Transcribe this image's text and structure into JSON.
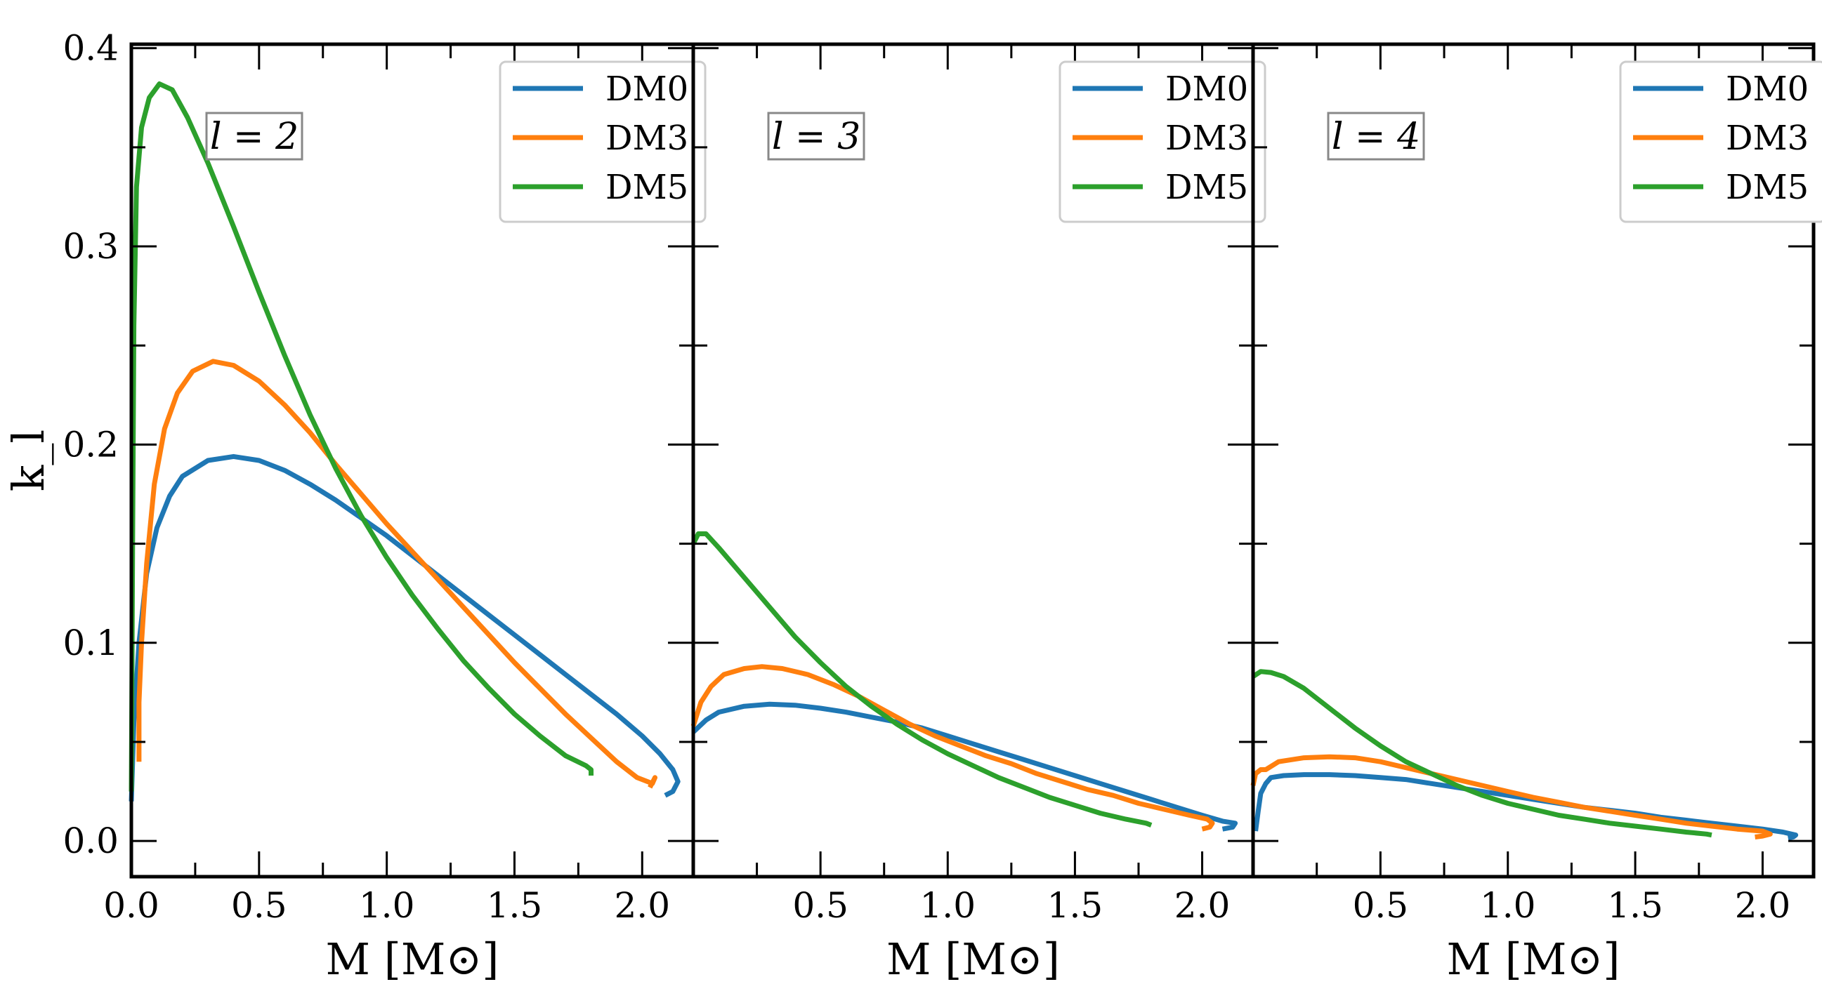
{
  "chart_data": [
    {
      "type": "line",
      "annotation": "l = 2",
      "xlabel": "M [M⊙]",
      "ylabel": "k_l",
      "xlim": [
        0.0,
        2.2
      ],
      "ylim": [
        -0.018,
        0.402
      ],
      "xticks": [
        "0.0",
        "0.5",
        "1.0",
        "1.5",
        "2.0"
      ],
      "yticks": [
        "0.0",
        "0.1",
        "0.2",
        "0.3",
        "0.4"
      ],
      "legend_position": "top-right",
      "series": [
        {
          "name": "DM0",
          "color": "#1f77b4",
          "points": [
            [
              0.0,
              0.02
            ],
            [
              0.01,
              0.06
            ],
            [
              0.03,
              0.1
            ],
            [
              0.06,
              0.135
            ],
            [
              0.1,
              0.158
            ],
            [
              0.15,
              0.174
            ],
            [
              0.2,
              0.184
            ],
            [
              0.3,
              0.192
            ],
            [
              0.4,
              0.194
            ],
            [
              0.5,
              0.192
            ],
            [
              0.6,
              0.187
            ],
            [
              0.7,
              0.18
            ],
            [
              0.8,
              0.172
            ],
            [
              0.9,
              0.163
            ],
            [
              1.0,
              0.154
            ],
            [
              1.1,
              0.144
            ],
            [
              1.2,
              0.134
            ],
            [
              1.3,
              0.124
            ],
            [
              1.4,
              0.114
            ],
            [
              1.5,
              0.104
            ],
            [
              1.6,
              0.094
            ],
            [
              1.7,
              0.084
            ],
            [
              1.8,
              0.074
            ],
            [
              1.9,
              0.064
            ],
            [
              2.0,
              0.053
            ],
            [
              2.07,
              0.044
            ],
            [
              2.12,
              0.036
            ],
            [
              2.14,
              0.03
            ],
            [
              2.12,
              0.025
            ],
            [
              2.09,
              0.023
            ]
          ]
        },
        {
          "name": "DM3",
          "color": "#ff7f0e",
          "points": [
            [
              0.03,
              0.04
            ],
            [
              0.03,
              0.07
            ],
            [
              0.04,
              0.1
            ],
            [
              0.06,
              0.14
            ],
            [
              0.09,
              0.18
            ],
            [
              0.13,
              0.208
            ],
            [
              0.18,
              0.226
            ],
            [
              0.24,
              0.237
            ],
            [
              0.32,
              0.242
            ],
            [
              0.4,
              0.24
            ],
            [
              0.5,
              0.232
            ],
            [
              0.6,
              0.22
            ],
            [
              0.7,
              0.206
            ],
            [
              0.8,
              0.19
            ],
            [
              0.9,
              0.175
            ],
            [
              1.0,
              0.16
            ],
            [
              1.1,
              0.146
            ],
            [
              1.2,
              0.132
            ],
            [
              1.3,
              0.118
            ],
            [
              1.4,
              0.104
            ],
            [
              1.5,
              0.09
            ],
            [
              1.6,
              0.077
            ],
            [
              1.7,
              0.064
            ],
            [
              1.8,
              0.052
            ],
            [
              1.9,
              0.04
            ],
            [
              1.98,
              0.032
            ],
            [
              2.04,
              0.029
            ],
            [
              2.05,
              0.032
            ],
            [
              2.03,
              0.027
            ]
          ]
        },
        {
          "name": "DM5",
          "color": "#2ca02c",
          "points": [
            [
              0.0,
              0.025
            ],
            [
              0.005,
              0.15
            ],
            [
              0.01,
              0.26
            ],
            [
              0.02,
              0.33
            ],
            [
              0.04,
              0.36
            ],
            [
              0.07,
              0.375
            ],
            [
              0.11,
              0.382
            ],
            [
              0.16,
              0.379
            ],
            [
              0.22,
              0.365
            ],
            [
              0.3,
              0.342
            ],
            [
              0.4,
              0.31
            ],
            [
              0.5,
              0.277
            ],
            [
              0.6,
              0.245
            ],
            [
              0.7,
              0.215
            ],
            [
              0.8,
              0.188
            ],
            [
              0.9,
              0.164
            ],
            [
              1.0,
              0.143
            ],
            [
              1.1,
              0.124
            ],
            [
              1.2,
              0.107
            ],
            [
              1.3,
              0.091
            ],
            [
              1.4,
              0.077
            ],
            [
              1.5,
              0.064
            ],
            [
              1.6,
              0.053
            ],
            [
              1.7,
              0.043
            ],
            [
              1.78,
              0.038
            ],
            [
              1.8,
              0.036
            ],
            [
              1.8,
              0.033
            ]
          ]
        }
      ]
    },
    {
      "type": "line",
      "annotation": "l = 3",
      "xlabel": "M [M⊙]",
      "ylabel": "",
      "xlim": [
        0.0,
        2.2
      ],
      "ylim": [
        -0.018,
        0.402
      ],
      "xticks": [
        "0.5",
        "1.0",
        "1.5",
        "2.0"
      ],
      "yticks": [],
      "legend_position": "top-right",
      "series": [
        {
          "name": "DM0",
          "color": "#1f77b4",
          "points": [
            [
              0.0,
              0.055
            ],
            [
              0.05,
              0.061
            ],
            [
              0.1,
              0.065
            ],
            [
              0.2,
              0.068
            ],
            [
              0.3,
              0.069
            ],
            [
              0.4,
              0.0685
            ],
            [
              0.5,
              0.067
            ],
            [
              0.6,
              0.065
            ],
            [
              0.7,
              0.0625
            ],
            [
              0.8,
              0.06
            ],
            [
              0.9,
              0.057
            ],
            [
              1.0,
              0.053
            ],
            [
              1.1,
              0.049
            ],
            [
              1.2,
              0.045
            ],
            [
              1.3,
              0.041
            ],
            [
              1.4,
              0.037
            ],
            [
              1.5,
              0.033
            ],
            [
              1.6,
              0.029
            ],
            [
              1.7,
              0.025
            ],
            [
              1.8,
              0.021
            ],
            [
              1.9,
              0.017
            ],
            [
              2.0,
              0.013
            ],
            [
              2.08,
              0.01
            ],
            [
              2.13,
              0.009
            ],
            [
              2.12,
              0.007
            ],
            [
              2.08,
              0.006
            ]
          ]
        },
        {
          "name": "DM3",
          "color": "#ff7f0e",
          "points": [
            [
              0.0,
              0.058
            ],
            [
              0.03,
              0.07
            ],
            [
              0.07,
              0.078
            ],
            [
              0.12,
              0.084
            ],
            [
              0.2,
              0.087
            ],
            [
              0.27,
              0.088
            ],
            [
              0.35,
              0.087
            ],
            [
              0.45,
              0.084
            ],
            [
              0.55,
              0.079
            ],
            [
              0.65,
              0.073
            ],
            [
              0.75,
              0.066
            ],
            [
              0.85,
              0.059
            ],
            [
              0.95,
              0.053
            ],
            [
              1.05,
              0.048
            ],
            [
              1.15,
              0.043
            ],
            [
              1.25,
              0.039
            ],
            [
              1.35,
              0.034
            ],
            [
              1.45,
              0.03
            ],
            [
              1.55,
              0.026
            ],
            [
              1.65,
              0.023
            ],
            [
              1.75,
              0.019
            ],
            [
              1.85,
              0.016
            ],
            [
              1.95,
              0.013
            ],
            [
              2.02,
              0.011
            ],
            [
              2.04,
              0.009
            ],
            [
              2.03,
              0.007
            ],
            [
              2.0,
              0.006
            ]
          ]
        },
        {
          "name": "DM5",
          "color": "#2ca02c",
          "points": [
            [
              0.0,
              0.15
            ],
            [
              0.02,
              0.155
            ],
            [
              0.05,
              0.155
            ],
            [
              0.1,
              0.148
            ],
            [
              0.2,
              0.133
            ],
            [
              0.3,
              0.118
            ],
            [
              0.4,
              0.103
            ],
            [
              0.5,
              0.09
            ],
            [
              0.6,
              0.078
            ],
            [
              0.7,
              0.068
            ],
            [
              0.8,
              0.059
            ],
            [
              0.9,
              0.051
            ],
            [
              1.0,
              0.044
            ],
            [
              1.1,
              0.038
            ],
            [
              1.2,
              0.032
            ],
            [
              1.3,
              0.027
            ],
            [
              1.4,
              0.022
            ],
            [
              1.5,
              0.018
            ],
            [
              1.6,
              0.014
            ],
            [
              1.7,
              0.011
            ],
            [
              1.78,
              0.009
            ],
            [
              1.8,
              0.008
            ]
          ]
        }
      ]
    },
    {
      "type": "line",
      "annotation": "l = 4",
      "xlabel": "M [M⊙]",
      "ylabel": "",
      "xlim": [
        0.0,
        2.2
      ],
      "ylim": [
        -0.018,
        0.402
      ],
      "xticks": [
        "0.5",
        "1.0",
        "1.5",
        "2.0"
      ],
      "yticks": [],
      "legend_position": "top-right",
      "series": [
        {
          "name": "DM0",
          "color": "#1f77b4",
          "points": [
            [
              0.01,
              0.005
            ],
            [
              0.02,
              0.015
            ],
            [
              0.03,
              0.024
            ],
            [
              0.05,
              0.029
            ],
            [
              0.07,
              0.032
            ],
            [
              0.12,
              0.033
            ],
            [
              0.2,
              0.0335
            ],
            [
              0.3,
              0.0335
            ],
            [
              0.4,
              0.033
            ],
            [
              0.5,
              0.032
            ],
            [
              0.6,
              0.031
            ],
            [
              0.7,
              0.029
            ],
            [
              0.8,
              0.027
            ],
            [
              0.9,
              0.025
            ],
            [
              1.0,
              0.023
            ],
            [
              1.1,
              0.021
            ],
            [
              1.2,
              0.019
            ],
            [
              1.3,
              0.017
            ],
            [
              1.4,
              0.0155
            ],
            [
              1.5,
              0.014
            ],
            [
              1.6,
              0.012
            ],
            [
              1.7,
              0.0105
            ],
            [
              1.8,
              0.009
            ],
            [
              1.9,
              0.0075
            ],
            [
              2.0,
              0.006
            ],
            [
              2.08,
              0.0045
            ],
            [
              2.13,
              0.003
            ],
            [
              2.12,
              0.002
            ],
            [
              2.1,
              0.0015
            ]
          ]
        },
        {
          "name": "DM3",
          "color": "#ff7f0e",
          "points": [
            [
              0.0,
              0.028
            ],
            [
              0.01,
              0.034
            ],
            [
              0.03,
              0.036
            ],
            [
              0.05,
              0.036
            ],
            [
              0.1,
              0.04
            ],
            [
              0.2,
              0.042
            ],
            [
              0.3,
              0.0425
            ],
            [
              0.4,
              0.042
            ],
            [
              0.5,
              0.04
            ],
            [
              0.6,
              0.037
            ],
            [
              0.7,
              0.034
            ],
            [
              0.8,
              0.031
            ],
            [
              0.9,
              0.028
            ],
            [
              1.0,
              0.025
            ],
            [
              1.1,
              0.022
            ],
            [
              1.2,
              0.0195
            ],
            [
              1.3,
              0.017
            ],
            [
              1.4,
              0.015
            ],
            [
              1.5,
              0.013
            ],
            [
              1.6,
              0.011
            ],
            [
              1.7,
              0.009
            ],
            [
              1.8,
              0.0075
            ],
            [
              1.9,
              0.006
            ],
            [
              2.0,
              0.005
            ],
            [
              2.03,
              0.0035
            ],
            [
              2.0,
              0.0025
            ],
            [
              1.97,
              0.002
            ]
          ]
        },
        {
          "name": "DM5",
          "color": "#2ca02c",
          "points": [
            [
              0.0,
              0.083
            ],
            [
              0.03,
              0.0855
            ],
            [
              0.07,
              0.085
            ],
            [
              0.12,
              0.083
            ],
            [
              0.2,
              0.077
            ],
            [
              0.3,
              0.067
            ],
            [
              0.4,
              0.057
            ],
            [
              0.5,
              0.048
            ],
            [
              0.6,
              0.04
            ],
            [
              0.7,
              0.034
            ],
            [
              0.8,
              0.028
            ],
            [
              0.9,
              0.023
            ],
            [
              1.0,
              0.019
            ],
            [
              1.1,
              0.016
            ],
            [
              1.2,
              0.013
            ],
            [
              1.3,
              0.011
            ],
            [
              1.4,
              0.009
            ],
            [
              1.5,
              0.0075
            ],
            [
              1.6,
              0.006
            ],
            [
              1.7,
              0.0045
            ],
            [
              1.78,
              0.0035
            ],
            [
              1.8,
              0.003
            ]
          ]
        }
      ]
    }
  ]
}
